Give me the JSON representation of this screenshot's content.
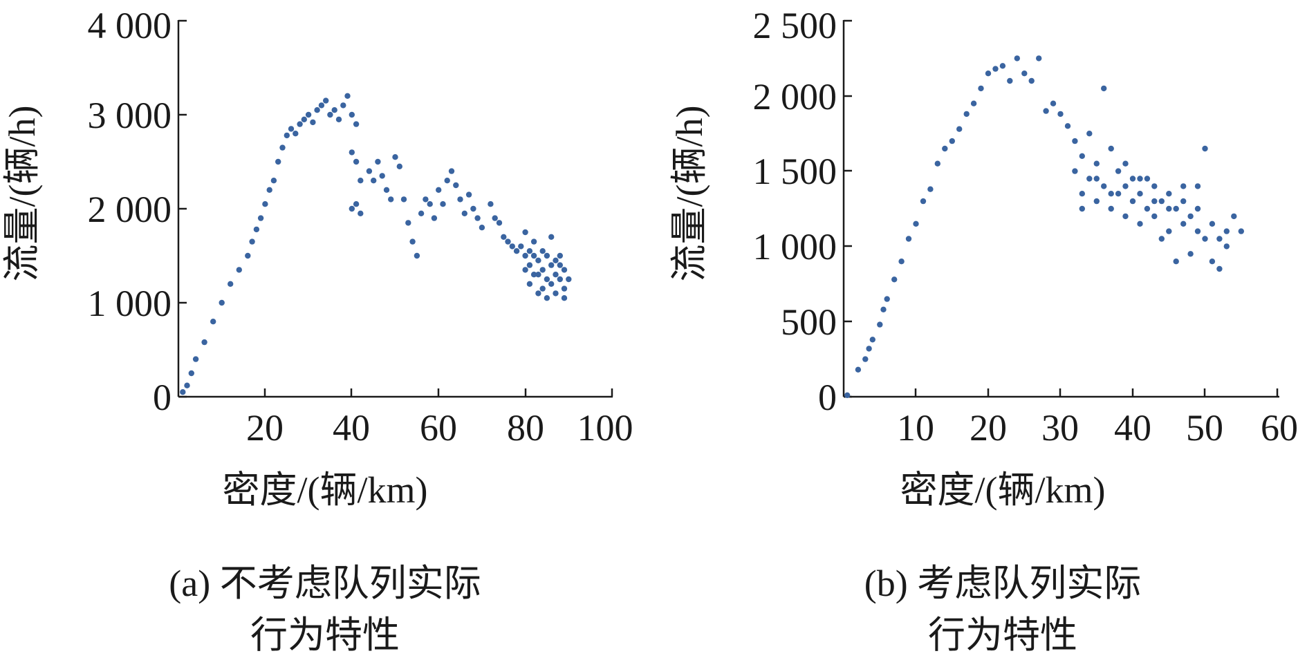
{
  "colors": {
    "marker": "#3a64a0",
    "axis": "#1a1a1a"
  },
  "chart_data": [
    {
      "type": "scatter",
      "xlabel": "密度/(辆/km)",
      "ylabel": "流量/(辆/h)",
      "caption_line1": "(a) 不考虑队列实际",
      "caption_line2": "行为特性",
      "xlim": [
        0,
        100
      ],
      "ylim": [
        0,
        4000
      ],
      "x_ticks": [
        20,
        40,
        60,
        80,
        100
      ],
      "y_ticks": [
        0,
        1000,
        2000,
        3000,
        4000
      ],
      "x_tick_labels": [
        "20",
        "40",
        "60",
        "80",
        "100"
      ],
      "y_tick_labels": [
        "0",
        "1 000",
        "2 000",
        "3 000",
        "4 000"
      ],
      "points": [
        [
          1,
          50
        ],
        [
          2,
          120
        ],
        [
          3,
          250
        ],
        [
          4,
          400
        ],
        [
          6,
          580
        ],
        [
          8,
          800
        ],
        [
          10,
          1000
        ],
        [
          12,
          1200
        ],
        [
          14,
          1350
        ],
        [
          16,
          1500
        ],
        [
          17,
          1650
        ],
        [
          18,
          1780
        ],
        [
          19,
          1900
        ],
        [
          20,
          2050
        ],
        [
          21,
          2200
        ],
        [
          22,
          2300
        ],
        [
          23,
          2500
        ],
        [
          24,
          2650
        ],
        [
          25,
          2780
        ],
        [
          26,
          2850
        ],
        [
          27,
          2800
        ],
        [
          28,
          2900
        ],
        [
          29,
          2950
        ],
        [
          30,
          3000
        ],
        [
          31,
          2920
        ],
        [
          32,
          3050
        ],
        [
          33,
          3100
        ],
        [
          34,
          3150
        ],
        [
          35,
          3000
        ],
        [
          36,
          3050
        ],
        [
          37,
          2950
        ],
        [
          38,
          3100
        ],
        [
          39,
          3200
        ],
        [
          40,
          3000
        ],
        [
          41,
          2900
        ],
        [
          40,
          2600
        ],
        [
          41,
          2500
        ],
        [
          42,
          2300
        ],
        [
          41,
          2050
        ],
        [
          40,
          2000
        ],
        [
          42,
          1950
        ],
        [
          44,
          2400
        ],
        [
          45,
          2300
        ],
        [
          46,
          2500
        ],
        [
          47,
          2350
        ],
        [
          48,
          2200
        ],
        [
          49,
          2100
        ],
        [
          50,
          2550
        ],
        [
          51,
          2450
        ],
        [
          52,
          2100
        ],
        [
          53,
          1850
        ],
        [
          54,
          1650
        ],
        [
          55,
          1500
        ],
        [
          56,
          1950
        ],
        [
          57,
          2100
        ],
        [
          58,
          2050
        ],
        [
          59,
          1900
        ],
        [
          60,
          2200
        ],
        [
          61,
          2050
        ],
        [
          62,
          2300
        ],
        [
          63,
          2400
        ],
        [
          64,
          2250
        ],
        [
          65,
          2100
        ],
        [
          66,
          1950
        ],
        [
          67,
          2150
        ],
        [
          68,
          2000
        ],
        [
          69,
          1900
        ],
        [
          70,
          1800
        ],
        [
          72,
          2050
        ],
        [
          73,
          1900
        ],
        [
          74,
          1850
        ],
        [
          75,
          1700
        ],
        [
          76,
          1650
        ],
        [
          77,
          1600
        ],
        [
          78,
          1550
        ],
        [
          79,
          1600
        ],
        [
          80,
          1500
        ],
        [
          80,
          1750
        ],
        [
          81,
          1400
        ],
        [
          81,
          1200
        ],
        [
          82,
          1300
        ],
        [
          82,
          1650
        ],
        [
          83,
          1100
        ],
        [
          83,
          1450
        ],
        [
          84,
          1350
        ],
        [
          84,
          1550
        ],
        [
          85,
          1250
        ],
        [
          85,
          1050
        ],
        [
          86,
          1400
        ],
        [
          86,
          1700
        ],
        [
          87,
          1300
        ],
        [
          87,
          1100
        ],
        [
          88,
          1500
        ],
        [
          88,
          1250
        ],
        [
          89,
          1350
        ],
        [
          89,
          1150
        ],
        [
          90,
          1250
        ],
        [
          80,
          1350
        ],
        [
          82,
          1500
        ],
        [
          84,
          1150
        ],
        [
          86,
          1200
        ],
        [
          88,
          1400
        ],
        [
          81,
          1550
        ],
        [
          83,
          1300
        ],
        [
          85,
          1500
        ],
        [
          87,
          1450
        ],
        [
          89,
          1050
        ]
      ]
    },
    {
      "type": "scatter",
      "xlabel": "密度/(辆/km)",
      "ylabel": "流量/(辆/h)",
      "caption_line1": "(b) 考虑队列实际",
      "caption_line2": "行为特性",
      "xlim": [
        0,
        60
      ],
      "ylim": [
        0,
        2500
      ],
      "x_ticks": [
        10,
        20,
        30,
        40,
        50,
        60
      ],
      "y_ticks": [
        0,
        500,
        1000,
        1500,
        2000,
        2500
      ],
      "x_tick_labels": [
        "10",
        "20",
        "30",
        "40",
        "50",
        "60"
      ],
      "y_tick_labels": [
        "0",
        "500",
        "1 000",
        "1 500",
        "2 000",
        "2 500"
      ],
      "points": [
        [
          0.5,
          10
        ],
        [
          2,
          180
        ],
        [
          3,
          250
        ],
        [
          3.5,
          320
        ],
        [
          4,
          380
        ],
        [
          5,
          480
        ],
        [
          5.5,
          580
        ],
        [
          6,
          650
        ],
        [
          7,
          780
        ],
        [
          8,
          900
        ],
        [
          9,
          1050
        ],
        [
          10,
          1150
        ],
        [
          11,
          1300
        ],
        [
          12,
          1380
        ],
        [
          13,
          1550
        ],
        [
          14,
          1650
        ],
        [
          15,
          1700
        ],
        [
          16,
          1780
        ],
        [
          17,
          1880
        ],
        [
          18,
          1950
        ],
        [
          19,
          2050
        ],
        [
          20,
          2150
        ],
        [
          21,
          2180
        ],
        [
          22,
          2200
        ],
        [
          23,
          2100
        ],
        [
          24,
          2250
        ],
        [
          25,
          2150
        ],
        [
          26,
          2100
        ],
        [
          27,
          2250
        ],
        [
          28,
          1900
        ],
        [
          29,
          1950
        ],
        [
          30,
          1880
        ],
        [
          31,
          1800
        ],
        [
          32,
          1700
        ],
        [
          32,
          1500
        ],
        [
          33,
          1600
        ],
        [
          33,
          1350
        ],
        [
          34,
          1450
        ],
        [
          34,
          1750
        ],
        [
          35,
          1300
        ],
        [
          35,
          1550
        ],
        [
          36,
          1400
        ],
        [
          36,
          2050
        ],
        [
          37,
          1250
        ],
        [
          37,
          1650
        ],
        [
          38,
          1500
        ],
        [
          38,
          1350
        ],
        [
          39,
          1400
        ],
        [
          39,
          1200
        ],
        [
          40,
          1450
        ],
        [
          40,
          1300
        ],
        [
          41,
          1350
        ],
        [
          41,
          1150
        ],
        [
          42,
          1250
        ],
        [
          42,
          1450
        ],
        [
          43,
          1200
        ],
        [
          43,
          1400
        ],
        [
          44,
          1300
        ],
        [
          44,
          1050
        ],
        [
          45,
          1350
        ],
        [
          45,
          1100
        ],
        [
          46,
          1250
        ],
        [
          46,
          900
        ],
        [
          47,
          1300
        ],
        [
          47,
          1150
        ],
        [
          48,
          1200
        ],
        [
          48,
          950
        ],
        [
          49,
          1100
        ],
        [
          49,
          1400
        ],
        [
          50,
          1650
        ],
        [
          50,
          1050
        ],
        [
          51,
          900
        ],
        [
          51,
          1150
        ],
        [
          52,
          1050
        ],
        [
          52,
          850
        ],
        [
          53,
          1000
        ],
        [
          54,
          1200
        ],
        [
          55,
          1100
        ],
        [
          33,
          1250
        ],
        [
          35,
          1450
        ],
        [
          37,
          1350
        ],
        [
          39,
          1550
        ],
        [
          41,
          1450
        ],
        [
          43,
          1300
        ],
        [
          45,
          1250
        ],
        [
          47,
          1400
        ],
        [
          49,
          1250
        ],
        [
          53,
          1100
        ]
      ]
    }
  ]
}
